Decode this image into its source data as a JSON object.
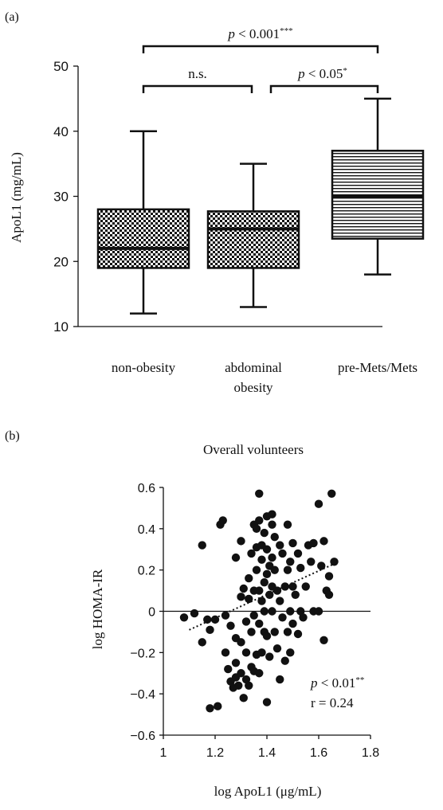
{
  "panel_a": {
    "label": "(a)",
    "ylabel": "ApoL1 (mg/mL)",
    "brackets": [
      {
        "from": 0,
        "to": 1,
        "text": "n.s.",
        "p": "",
        "rest": "",
        "stars": ""
      },
      {
        "from": 1,
        "to": 2,
        "text": "",
        "p": "p",
        "rest": " < 0.05",
        "stars": "*"
      },
      {
        "from": 0,
        "to": 2,
        "text": "",
        "p": "p",
        "rest": " < 0.001",
        "stars": "***"
      }
    ]
  },
  "panel_b": {
    "label": "(b)",
    "title": "Overall volunteers",
    "xlabel": "log ApoL1 (μg/mL)",
    "ylabel": "log HOMA-IR",
    "annotation_p": "p",
    "annotation_rest": " < 0.01",
    "annotation_stars": "**",
    "annotation_r": "r = 0.24"
  },
  "chart_data": [
    {
      "type": "box",
      "categories": [
        "non-obesity",
        "abdominal obesity",
        "pre-Mets/Mets"
      ],
      "category_lines": [
        [
          "non-obesity"
        ],
        [
          "abdominal",
          "obesity"
        ],
        [
          "pre-Mets/Mets"
        ]
      ],
      "fill_patterns": [
        "checker",
        "checker",
        "horizontal-lines"
      ],
      "boxes": [
        {
          "min": 12,
          "q1": 19,
          "median": 22,
          "q3": 28,
          "max": 40
        },
        {
          "min": 13,
          "q1": 19,
          "median": 25,
          "q3": 27.7,
          "max": 35
        },
        {
          "min": 18,
          "q1": 23.5,
          "median": 30,
          "q3": 37,
          "max": 45
        }
      ],
      "ylabel": "ApoL1 (mg/mL)",
      "ylim": [
        10,
        50
      ],
      "yticks": [
        10,
        20,
        30,
        40,
        50
      ]
    },
    {
      "type": "scatter",
      "title": "Overall volunteers",
      "xlabel": "log ApoL1 (μg/mL)",
      "ylabel": "log HOMA-IR",
      "xlim": [
        1,
        1.8
      ],
      "ylim": [
        -0.6,
        0.6
      ],
      "xticks": [
        1,
        1.2,
        1.4,
        1.6,
        1.8
      ],
      "yticks": [
        -0.6,
        -0.4,
        -0.2,
        0,
        0.2,
        0.4,
        0.6
      ],
      "trendline": {
        "style": "dotted",
        "x": [
          1.1,
          1.66
        ],
        "y": [
          -0.09,
          0.23
        ]
      },
      "points": [
        [
          1.08,
          -0.03
        ],
        [
          1.12,
          -0.01
        ],
        [
          1.15,
          0.32
        ],
        [
          1.15,
          -0.15
        ],
        [
          1.17,
          -0.04
        ],
        [
          1.18,
          -0.09
        ],
        [
          1.18,
          -0.47
        ],
        [
          1.2,
          -0.04
        ],
        [
          1.21,
          -0.46
        ],
        [
          1.22,
          0.42
        ],
        [
          1.23,
          0.44
        ],
        [
          1.24,
          -0.02
        ],
        [
          1.24,
          -0.2
        ],
        [
          1.25,
          -0.28
        ],
        [
          1.26,
          -0.07
        ],
        [
          1.26,
          -0.34
        ],
        [
          1.27,
          -0.37
        ],
        [
          1.28,
          -0.32
        ],
        [
          1.28,
          -0.25
        ],
        [
          1.28,
          0.26
        ],
        [
          1.28,
          -0.13
        ],
        [
          1.29,
          -0.36
        ],
        [
          1.3,
          0.34
        ],
        [
          1.3,
          0.07
        ],
        [
          1.3,
          -0.15
        ],
        [
          1.3,
          -0.3
        ],
        [
          1.31,
          0.11
        ],
        [
          1.31,
          -0.42
        ],
        [
          1.32,
          -0.05
        ],
        [
          1.32,
          -0.2
        ],
        [
          1.32,
          -0.33
        ],
        [
          1.33,
          0.16
        ],
        [
          1.33,
          0.06
        ],
        [
          1.33,
          -0.36
        ],
        [
          1.34,
          0.28
        ],
        [
          1.34,
          -0.1
        ],
        [
          1.34,
          -0.27
        ],
        [
          1.35,
          0.42
        ],
        [
          1.35,
          0.1
        ],
        [
          1.35,
          -0.02
        ],
        [
          1.35,
          -0.29
        ],
        [
          1.36,
          0.4
        ],
        [
          1.36,
          0.31
        ],
        [
          1.36,
          0.2
        ],
        [
          1.36,
          -0.21
        ],
        [
          1.37,
          0.57
        ],
        [
          1.37,
          0.44
        ],
        [
          1.37,
          0.1
        ],
        [
          1.37,
          -0.06
        ],
        [
          1.37,
          -0.3
        ],
        [
          1.38,
          0.32
        ],
        [
          1.38,
          0.25
        ],
        [
          1.38,
          0.05
        ],
        [
          1.38,
          -0.2
        ],
        [
          1.39,
          0.38
        ],
        [
          1.39,
          0.14
        ],
        [
          1.39,
          0.0
        ],
        [
          1.39,
          -0.1
        ],
        [
          1.4,
          0.46
        ],
        [
          1.4,
          0.3
        ],
        [
          1.4,
          0.18
        ],
        [
          1.4,
          -0.12
        ],
        [
          1.4,
          -0.44
        ],
        [
          1.41,
          0.22
        ],
        [
          1.41,
          0.08
        ],
        [
          1.41,
          -0.22
        ],
        [
          1.42,
          0.42
        ],
        [
          1.42,
          0.47
        ],
        [
          1.42,
          0.26
        ],
        [
          1.42,
          0.12
        ],
        [
          1.42,
          0.0
        ],
        [
          1.43,
          0.36
        ],
        [
          1.43,
          0.2
        ],
        [
          1.43,
          -0.1
        ],
        [
          1.44,
          0.1
        ],
        [
          1.44,
          -0.18
        ],
        [
          1.45,
          0.32
        ],
        [
          1.45,
          0.05
        ],
        [
          1.45,
          -0.33
        ],
        [
          1.46,
          0.28
        ],
        [
          1.46,
          -0.03
        ],
        [
          1.47,
          0.12
        ],
        [
          1.47,
          -0.24
        ],
        [
          1.48,
          0.42
        ],
        [
          1.48,
          0.2
        ],
        [
          1.48,
          -0.1
        ],
        [
          1.49,
          0.24
        ],
        [
          1.49,
          0.0
        ],
        [
          1.49,
          -0.2
        ],
        [
          1.5,
          0.33
        ],
        [
          1.5,
          0.12
        ],
        [
          1.5,
          -0.06
        ],
        [
          1.51,
          0.08
        ],
        [
          1.52,
          0.28
        ],
        [
          1.52,
          -0.11
        ],
        [
          1.53,
          0.21
        ],
        [
          1.53,
          0.0
        ],
        [
          1.54,
          -0.03
        ],
        [
          1.55,
          0.12
        ],
        [
          1.56,
          0.32
        ],
        [
          1.57,
          0.24
        ],
        [
          1.58,
          0.33
        ],
        [
          1.58,
          0.0
        ],
        [
          1.6,
          0.52
        ],
        [
          1.6,
          0.0
        ],
        [
          1.61,
          0.22
        ],
        [
          1.62,
          -0.14
        ],
        [
          1.62,
          0.34
        ],
        [
          1.63,
          0.1
        ],
        [
          1.64,
          0.17
        ],
        [
          1.64,
          0.08
        ],
        [
          1.65,
          0.57
        ],
        [
          1.66,
          0.24
        ]
      ]
    }
  ]
}
